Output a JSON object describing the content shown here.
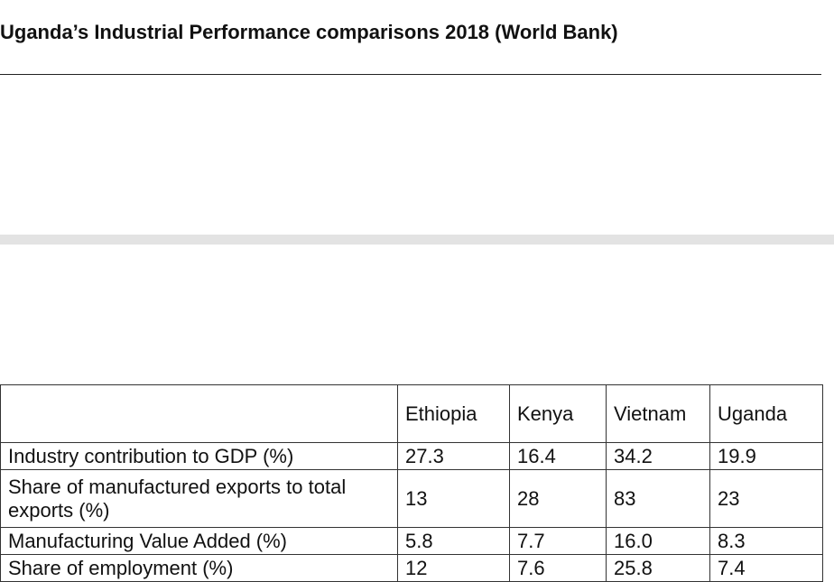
{
  "document": {
    "title": "Uganda’s Industrial Performance comparisons 2018 (World Bank)"
  },
  "table": {
    "headers": [
      "",
      "Ethiopia",
      "Kenya",
      "Vietnam",
      "Uganda"
    ],
    "rows": [
      {
        "label": "Industry contribution to GDP (%)",
        "values": [
          "27.3",
          "16.4",
          "34.2",
          "19.9"
        ]
      },
      {
        "label": "Share of manufactured exports to total exports (%)",
        "values": [
          "13",
          "28",
          "83",
          "23"
        ]
      },
      {
        "label": "Manufacturing Value Added (%)",
        "values": [
          "5.8",
          "7.7",
          "16.0",
          "8.3"
        ]
      },
      {
        "label": "Share of employment (%)",
        "values": [
          "12",
          "7.6",
          "25.8",
          "7.4"
        ]
      }
    ]
  }
}
